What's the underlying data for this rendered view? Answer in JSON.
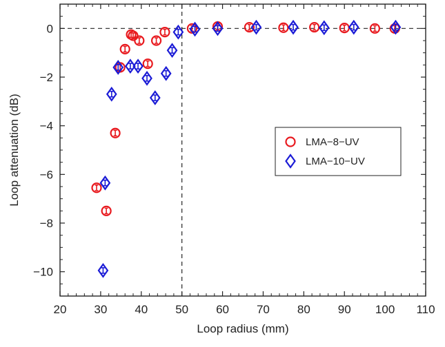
{
  "chart_data": {
    "type": "scatter",
    "xlabel": "Loop radius (mm)",
    "ylabel": "Loop attenuation (dB)",
    "xlim": [
      20,
      110
    ],
    "ylim": [
      -11,
      1
    ],
    "x_ticks": [
      20,
      30,
      40,
      50,
      60,
      70,
      80,
      90,
      100,
      110
    ],
    "y_ticks": [
      0,
      -2,
      -4,
      -6,
      -8,
      -10
    ],
    "y_tick_labels": [
      "0",
      "−2",
      "−4",
      "−6",
      "−8",
      "−10"
    ],
    "x_tick_labels": [
      "20",
      "30",
      "40",
      "50",
      "60",
      "70",
      "80",
      "90",
      "100",
      "110"
    ],
    "grid": false,
    "reference_lines": {
      "y": 0,
      "x": 50,
      "style": "dashed"
    },
    "legend": {
      "position": "right-middle",
      "entries": [
        "LMA−8−UV",
        "LMA−10−UV"
      ]
    },
    "series": [
      {
        "name": "LMA−8−UV",
        "marker": "circle",
        "color": "#e8191e",
        "points": [
          [
            29.0,
            -6.55
          ],
          [
            31.4,
            -7.5
          ],
          [
            33.6,
            -4.3
          ],
          [
            34.8,
            -1.6
          ],
          [
            36.0,
            -0.85
          ],
          [
            37.5,
            -0.25
          ],
          [
            38.0,
            -0.3
          ],
          [
            39.5,
            -0.5
          ],
          [
            41.6,
            -1.45
          ],
          [
            43.7,
            -0.5
          ],
          [
            45.8,
            -0.15
          ],
          [
            52.5,
            0.0
          ],
          [
            58.8,
            0.08
          ],
          [
            66.6,
            0.05
          ],
          [
            75.0,
            0.03
          ],
          [
            82.6,
            0.05
          ],
          [
            90.0,
            0.02
          ],
          [
            97.5,
            0.0
          ],
          [
            102.4,
            0.0
          ]
        ]
      },
      {
        "name": "LMA−10−UV",
        "marker": "diamond",
        "color": "#1b1bd6",
        "points": [
          [
            30.6,
            -9.95
          ],
          [
            31.1,
            -6.35
          ],
          [
            32.7,
            -2.7
          ],
          [
            34.3,
            -1.6
          ],
          [
            37.3,
            -1.55
          ],
          [
            39.2,
            -1.55
          ],
          [
            41.4,
            -2.05
          ],
          [
            43.4,
            -2.85
          ],
          [
            46.1,
            -1.85
          ],
          [
            47.6,
            -0.9
          ],
          [
            49.1,
            -0.15
          ],
          [
            53.2,
            -0.03
          ],
          [
            58.8,
            0.0
          ],
          [
            68.3,
            0.05
          ],
          [
            77.4,
            0.05
          ],
          [
            85.0,
            0.03
          ],
          [
            92.3,
            0.05
          ],
          [
            102.6,
            0.05
          ]
        ]
      }
    ]
  }
}
